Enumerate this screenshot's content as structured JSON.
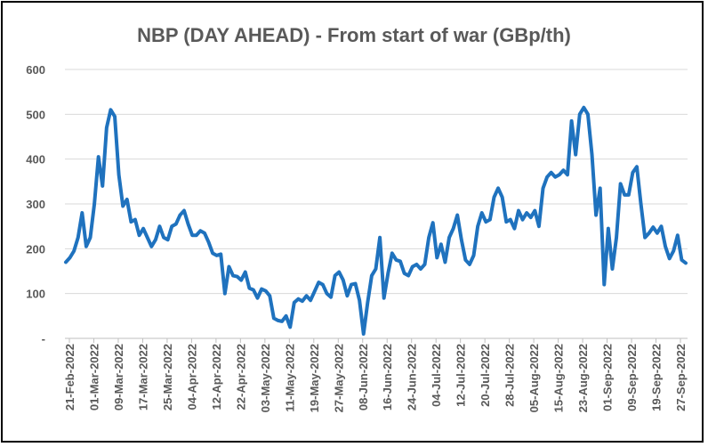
{
  "chart_data": {
    "type": "line",
    "title": "NBP (DAY AHEAD) - From start of war (GBp/th)",
    "xlabel": "",
    "ylabel": "",
    "ylim": [
      0,
      600
    ],
    "y_ticks": [
      "600",
      "500",
      "400",
      "300",
      "200",
      "100",
      "-"
    ],
    "y_tick_values": [
      600,
      500,
      400,
      300,
      200,
      100,
      0
    ],
    "grid": true,
    "legend": "none",
    "series_color": "#1F72BE",
    "x_tick_labels": [
      "21-Feb-2022",
      "01-Mar-2022",
      "09-Mar-2022",
      "17-Mar-2022",
      "25-Mar-2022",
      "04-Apr-2022",
      "12-Apr-2022",
      "22-Apr-2022",
      "03-May-2022",
      "11-May-2022",
      "19-May-2022",
      "27-May-2022",
      "08-Jun-2022",
      "16-Jun-2022",
      "24-Jun-2022",
      "04-Jul-2022",
      "12-Jul-2022",
      "20-Jul-2022",
      "28-Jul-2022",
      "05-Aug-2022",
      "15-Aug-2022",
      "23-Aug-2022",
      "01-Sep-2022",
      "09-Sep-2022",
      "19-Sep-2022",
      "27-Sep-2022"
    ],
    "series": [
      {
        "values": [
          170,
          180,
          195,
          225,
          280,
          205,
          225,
          300,
          405,
          340,
          470,
          510,
          495,
          365,
          295,
          310,
          260,
          265,
          230,
          245,
          225,
          205,
          220,
          250,
          225,
          220,
          250,
          255,
          275,
          285,
          255,
          230,
          230,
          240,
          235,
          215,
          190,
          185,
          188,
          100,
          160,
          140,
          138,
          130,
          148,
          112,
          108,
          90,
          110,
          106,
          95,
          45,
          40,
          38,
          50,
          25,
          80,
          88,
          83,
          95,
          85,
          105,
          125,
          120,
          100,
          92,
          140,
          148,
          130,
          95,
          120,
          122,
          85,
          10,
          80,
          140,
          155,
          225,
          90,
          145,
          190,
          175,
          172,
          145,
          140,
          160,
          165,
          155,
          165,
          225,
          258,
          180,
          210,
          170,
          225,
          245,
          275,
          220,
          175,
          165,
          185,
          250,
          280,
          260,
          265,
          315,
          335,
          315,
          260,
          265,
          245,
          285,
          265,
          280,
          270,
          285,
          250,
          335,
          360,
          370,
          360,
          365,
          375,
          365,
          485,
          410,
          500,
          515,
          500,
          410,
          275,
          335,
          120,
          245,
          155,
          225,
          345,
          320,
          320,
          370,
          383,
          300,
          225,
          235,
          248,
          235,
          250,
          205,
          178,
          195,
          230,
          175,
          168
        ]
      }
    ]
  }
}
